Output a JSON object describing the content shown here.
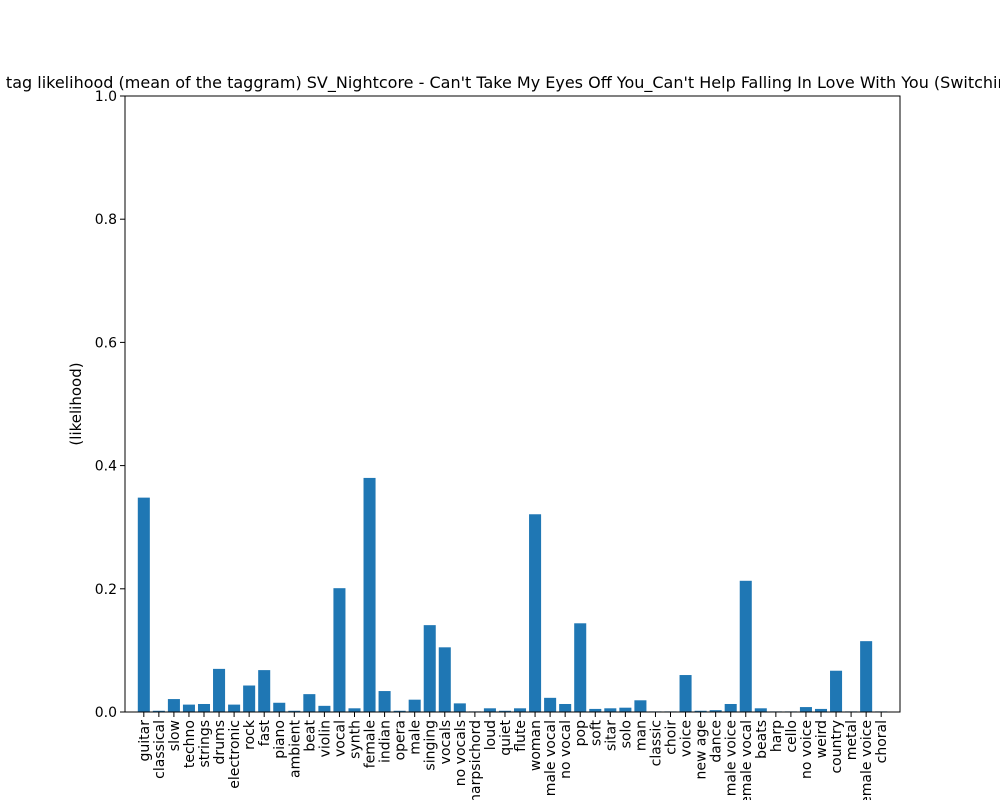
{
  "chart_data": {
    "type": "bar",
    "title": "Estimated tag likelihood (mean of the taggram) SV_Nightcore - Can't Take My Eyes Off You_Can't Help Falling In Love With You (Switching Vocals)",
    "xlabel": "",
    "ylabel": "(likelihood)",
    "ylim": [
      0,
      1.0
    ],
    "yticks": [
      "0.0",
      "0.2",
      "0.4",
      "0.6",
      "0.8",
      "1.0"
    ],
    "grid": false,
    "bar_color": "#1f77b4",
    "categories": [
      "guitar",
      "classical",
      "slow",
      "techno",
      "strings",
      "drums",
      "electronic",
      "rock",
      "fast",
      "piano",
      "ambient",
      "beat",
      "violin",
      "vocal",
      "synth",
      "female",
      "indian",
      "opera",
      "male",
      "singing",
      "vocals",
      "no vocals",
      "harpsichord",
      "loud",
      "quiet",
      "flute",
      "woman",
      "male vocal",
      "no vocal",
      "pop",
      "soft",
      "sitar",
      "solo",
      "man",
      "classic",
      "choir",
      "voice",
      "new age",
      "dance",
      "male voice",
      "female vocal",
      "beats",
      "harp",
      "cello",
      "no voice",
      "weird",
      "country",
      "metal",
      "female voice",
      "choral"
    ],
    "values": [
      0.348,
      0.002,
      0.021,
      0.012,
      0.013,
      0.07,
      0.012,
      0.043,
      0.068,
      0.015,
      0.002,
      0.029,
      0.01,
      0.201,
      0.006,
      0.38,
      0.034,
      0.002,
      0.02,
      0.141,
      0.105,
      0.014,
      0.001,
      0.006,
      0.002,
      0.006,
      0.321,
      0.023,
      0.013,
      0.144,
      0.005,
      0.006,
      0.007,
      0.019,
      0.001,
      0.001,
      0.06,
      0.002,
      0.003,
      0.013,
      0.213,
      0.006,
      0.001,
      0.001,
      0.008,
      0.005,
      0.067,
      0.001,
      0.115,
      0.001
    ]
  }
}
